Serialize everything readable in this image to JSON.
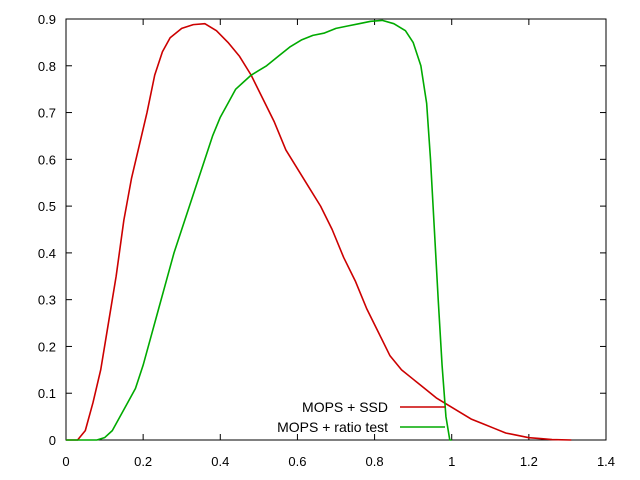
{
  "chart_data": {
    "type": "line",
    "title": "",
    "xlabel": "",
    "ylabel": "",
    "xlim": [
      0,
      1.4
    ],
    "ylim": [
      0,
      0.9
    ],
    "x_ticks": [
      "0",
      "0.2",
      "0.4",
      "0.6",
      "0.8",
      "1",
      "1.2",
      "1.4"
    ],
    "y_ticks": [
      "0",
      "0.1",
      "0.2",
      "0.3",
      "0.4",
      "0.5",
      "0.6",
      "0.7",
      "0.8",
      "0.9"
    ],
    "grid": false,
    "legend_position": "bottom-right",
    "series": [
      {
        "name": "MOPS + SSD",
        "color": "#cc0000",
        "points": [
          [
            0.0,
            0.0
          ],
          [
            0.03,
            0.0
          ],
          [
            0.05,
            0.02
          ],
          [
            0.07,
            0.08
          ],
          [
            0.09,
            0.15
          ],
          [
            0.11,
            0.25
          ],
          [
            0.13,
            0.35
          ],
          [
            0.15,
            0.47
          ],
          [
            0.17,
            0.56
          ],
          [
            0.19,
            0.63
          ],
          [
            0.21,
            0.7
          ],
          [
            0.23,
            0.78
          ],
          [
            0.25,
            0.83
          ],
          [
            0.27,
            0.86
          ],
          [
            0.3,
            0.88
          ],
          [
            0.33,
            0.888
          ],
          [
            0.36,
            0.89
          ],
          [
            0.39,
            0.875
          ],
          [
            0.42,
            0.85
          ],
          [
            0.45,
            0.82
          ],
          [
            0.48,
            0.78
          ],
          [
            0.51,
            0.73
          ],
          [
            0.54,
            0.68
          ],
          [
            0.57,
            0.62
          ],
          [
            0.6,
            0.58
          ],
          [
            0.63,
            0.54
          ],
          [
            0.66,
            0.5
          ],
          [
            0.69,
            0.45
          ],
          [
            0.72,
            0.39
          ],
          [
            0.75,
            0.34
          ],
          [
            0.78,
            0.28
          ],
          [
            0.81,
            0.23
          ],
          [
            0.84,
            0.18
          ],
          [
            0.87,
            0.15
          ],
          [
            0.9,
            0.13
          ],
          [
            0.93,
            0.11
          ],
          [
            0.96,
            0.09
          ],
          [
            0.99,
            0.075
          ],
          [
            1.02,
            0.06
          ],
          [
            1.05,
            0.045
          ],
          [
            1.08,
            0.035
          ],
          [
            1.11,
            0.025
          ],
          [
            1.14,
            0.015
          ],
          [
            1.17,
            0.01
          ],
          [
            1.2,
            0.005
          ],
          [
            1.23,
            0.003
          ],
          [
            1.26,
            0.001
          ],
          [
            1.31,
            0.0
          ]
        ]
      },
      {
        "name": "MOPS + ratio test",
        "color": "#00aa00",
        "points": [
          [
            0.0,
            0.0
          ],
          [
            0.08,
            0.0
          ],
          [
            0.1,
            0.005
          ],
          [
            0.12,
            0.02
          ],
          [
            0.14,
            0.05
          ],
          [
            0.16,
            0.08
          ],
          [
            0.18,
            0.11
          ],
          [
            0.2,
            0.16
          ],
          [
            0.22,
            0.22
          ],
          [
            0.24,
            0.28
          ],
          [
            0.26,
            0.34
          ],
          [
            0.28,
            0.4
          ],
          [
            0.3,
            0.45
          ],
          [
            0.32,
            0.5
          ],
          [
            0.34,
            0.55
          ],
          [
            0.36,
            0.6
          ],
          [
            0.38,
            0.65
          ],
          [
            0.4,
            0.69
          ],
          [
            0.42,
            0.72
          ],
          [
            0.44,
            0.75
          ],
          [
            0.46,
            0.765
          ],
          [
            0.48,
            0.78
          ],
          [
            0.5,
            0.79
          ],
          [
            0.52,
            0.8
          ],
          [
            0.55,
            0.82
          ],
          [
            0.58,
            0.84
          ],
          [
            0.61,
            0.855
          ],
          [
            0.64,
            0.865
          ],
          [
            0.67,
            0.87
          ],
          [
            0.7,
            0.88
          ],
          [
            0.73,
            0.885
          ],
          [
            0.76,
            0.89
          ],
          [
            0.79,
            0.895
          ],
          [
            0.82,
            0.897
          ],
          [
            0.85,
            0.89
          ],
          [
            0.88,
            0.875
          ],
          [
            0.9,
            0.85
          ],
          [
            0.92,
            0.8
          ],
          [
            0.935,
            0.72
          ],
          [
            0.945,
            0.6
          ],
          [
            0.955,
            0.45
          ],
          [
            0.965,
            0.3
          ],
          [
            0.975,
            0.16
          ],
          [
            0.985,
            0.05
          ],
          [
            0.995,
            0.0
          ],
          [
            1.0,
            0.0
          ]
        ]
      }
    ]
  }
}
